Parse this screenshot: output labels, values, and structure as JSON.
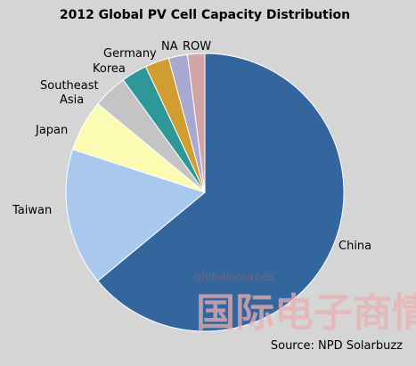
{
  "chart_data": {
    "type": "pie",
    "title": "2012 Global PV Cell Capacity Distribution",
    "slices": [
      {
        "label": "China",
        "value": 64.0,
        "color": "#33669c"
      },
      {
        "label": "Taiwan",
        "value": 16.0,
        "color": "#a8c8ee"
      },
      {
        "label": "Japan",
        "value": 6.0,
        "color": "#fbfbb4"
      },
      {
        "label": "Southeast Asia",
        "value": 4.0,
        "color": "#c4c4c4"
      },
      {
        "label": "Korea",
        "value": 3.0,
        "color": "#2e9898"
      },
      {
        "label": "Germany",
        "value": 2.8,
        "color": "#d19c30"
      },
      {
        "label": "NA",
        "value": 2.2,
        "color": "#a8a8d2"
      },
      {
        "label": "ROW",
        "value": 2.0,
        "color": "#d2a4a4"
      }
    ],
    "source": "Source: NPD Solarbuzz"
  },
  "watermark": {
    "logo_text": "globalsources",
    "chinese_text": "国际电子商情"
  }
}
